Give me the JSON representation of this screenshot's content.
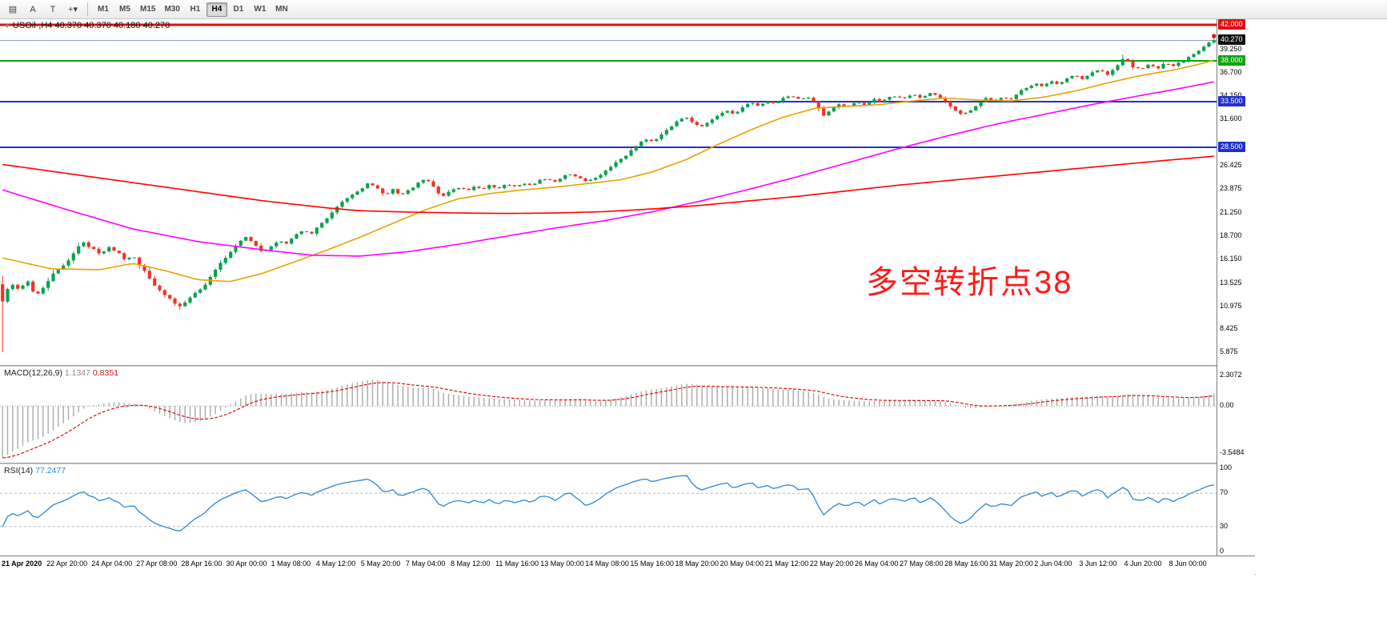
{
  "toolbar": {
    "tools": [
      {
        "name": "charts-list-icon",
        "glyph": "▤"
      },
      {
        "name": "annotate-a-button",
        "glyph": "A"
      },
      {
        "name": "text-label-button",
        "glyph": "T"
      },
      {
        "name": "drawing-tools-button",
        "glyph": "+▾"
      }
    ],
    "timeframes": [
      "M1",
      "M5",
      "M15",
      "M30",
      "H1",
      "H4",
      "D1",
      "W1",
      "MN"
    ],
    "active_timeframe": "H4"
  },
  "chart": {
    "symbol_label": "USOil-,H4 40.370 40.370 40.180 40.270",
    "annotation": "多空转折点38",
    "current_price": {
      "label": "40.270",
      "value": 40.27
    },
    "hlines": [
      {
        "label": "42.000",
        "value": 42.0,
        "color": "#dd1111",
        "width": 3
      },
      {
        "label": "38.000",
        "value": 38.0,
        "color": "#0fa30f",
        "width": 2
      },
      {
        "label": "33.500",
        "value": 33.5,
        "color": "#2330cc",
        "width": 2
      },
      {
        "label": "28.500",
        "value": 28.5,
        "color": "#2330cc",
        "width": 2
      }
    ],
    "price_ticks": [
      {
        "label": "39.250",
        "value": 39.25
      },
      {
        "label": "36.700",
        "value": 36.7
      },
      {
        "label": "34.150",
        "value": 34.15
      },
      {
        "label": "31.600",
        "value": 31.6
      },
      {
        "label": "26.425",
        "value": 26.425
      },
      {
        "label": "23.875",
        "value": 23.875
      },
      {
        "label": "21.250",
        "value": 21.25
      },
      {
        "label": "18.700",
        "value": 18.7
      },
      {
        "label": "16.150",
        "value": 16.15
      },
      {
        "label": "13.525",
        "value": 13.525
      },
      {
        "label": "10.975",
        "value": 10.975
      },
      {
        "label": "8.425",
        "value": 8.425
      },
      {
        "label": "5.875",
        "value": 5.875
      }
    ],
    "macd": {
      "name": "MACD(12,26,9)",
      "value": "1.1347",
      "signal": "0.8351",
      "axis": [
        {
          "label": "2.3072",
          "value": 2.3072
        },
        {
          "label": "0.00",
          "value": 0
        },
        {
          "label": "-3.5484",
          "value": -3.5484
        }
      ]
    },
    "rsi": {
      "name": "RSI(14)",
      "value": "77.2477",
      "axis": [
        {
          "label": "100",
          "value": 100
        },
        {
          "label": "70",
          "value": 70
        },
        {
          "label": "30",
          "value": 30
        },
        {
          "label": "0",
          "value": 0
        }
      ],
      "levels": [
        70,
        30
      ]
    },
    "time_labels": [
      "21 Apr 2020",
      "22 Apr 20:00",
      "24 Apr 04:00",
      "27 Apr 08:00",
      "28 Apr 16:00",
      "30 Apr 00:00",
      "1 May 08:00",
      "4 May 12:00",
      "5 May 20:00",
      "7 May 04:00",
      "8 May 12:00",
      "11 May 16:00",
      "13 May 00:00",
      "14 May 08:00",
      "15 May 16:00",
      "18 May 20:00",
      "20 May 04:00",
      "21 May 12:00",
      "22 May 20:00",
      "26 May 04:00",
      "27 May 08:00",
      "28 May 16:00",
      "31 May 20:00",
      "2 Jun 04:00",
      "3 Jun 12:00",
      "4 Jun 20:00",
      "8 Jun 00:00"
    ]
  },
  "chart_data": {
    "type": "candlestick+indicators",
    "symbol": "USOil",
    "timeframe": "H4",
    "ohlc_last": {
      "open": 40.37,
      "high": 40.37,
      "low": 40.18,
      "close": 40.27
    },
    "price_range": [
      4.5,
      42.6
    ],
    "render_bars": 240,
    "closes": [
      11.5,
      13.6,
      12.9,
      13.8,
      12.1,
      13.1,
      14.3,
      15.1,
      16.0,
      17.2,
      18.0,
      17.3,
      16.8,
      17.5,
      17.0,
      16.2,
      16.6,
      15.3,
      14.2,
      13.0,
      12.2,
      11.4,
      11.0,
      11.9,
      12.6,
      13.5,
      14.8,
      15.9,
      17.0,
      18.0,
      18.6,
      17.9,
      16.9,
      17.5,
      18.3,
      17.9,
      18.8,
      19.4,
      19.0,
      19.9,
      20.8,
      21.9,
      22.6,
      23.3,
      23.9,
      24.5,
      24.1,
      23.3,
      23.8,
      23.2,
      23.9,
      24.4,
      25.1,
      24.2,
      23.1,
      23.7,
      24.1,
      23.7,
      24.2,
      23.9,
      24.3,
      24.0,
      24.5,
      24.1,
      24.6,
      24.3,
      24.8,
      25.1,
      24.7,
      25.3,
      25.6,
      25.1,
      24.7,
      25.2,
      25.8,
      26.5,
      27.2,
      27.9,
      28.7,
      29.4,
      29.0,
      29.9,
      30.6,
      31.3,
      31.9,
      31.1,
      30.7,
      31.4,
      32.0,
      32.5,
      32.1,
      32.9,
      33.4,
      33.0,
      33.6,
      33.2,
      33.9,
      34.2,
      33.7,
      34.0,
      33.4,
      31.9,
      32.7,
      33.3,
      32.9,
      33.5,
      33.1,
      33.8,
      33.4,
      34.0,
      34.2,
      33.9,
      34.3,
      34.0,
      34.5,
      34.1,
      33.6,
      32.7,
      32.0,
      32.6,
      33.3,
      33.9,
      33.5,
      34.1,
      33.7,
      34.5,
      35.1,
      35.5,
      35.1,
      35.8,
      35.4,
      36.1,
      36.4,
      36.0,
      36.7,
      37.0,
      36.5,
      37.3,
      38.4,
      37.4,
      37.0,
      37.6,
      37.2,
      37.7,
      37.4,
      38.0,
      38.4,
      39.0,
      39.7,
      40.27
    ],
    "overrides": {
      "0": {
        "open": 13.4,
        "low": 5.9
      },
      "22": {
        "low": 10.6
      },
      "138": {
        "high": 38.7
      },
      "149": {
        "high": 40.5
      }
    },
    "colors": {
      "up": "#0ca04f",
      "down": "#ee3426"
    },
    "moving_averages": [
      {
        "name": "ma-fast-line",
        "color": "#e8a200",
        "anchors": [
          [
            0,
            16.3
          ],
          [
            6,
            15.1
          ],
          [
            12,
            15.0
          ],
          [
            16,
            15.7
          ],
          [
            20,
            14.9
          ],
          [
            24,
            13.9
          ],
          [
            28,
            13.7
          ],
          [
            32,
            14.6
          ],
          [
            36,
            15.9
          ],
          [
            40,
            17.2
          ],
          [
            44,
            18.6
          ],
          [
            48,
            20.1
          ],
          [
            52,
            21.6
          ],
          [
            56,
            22.8
          ],
          [
            60,
            23.4
          ],
          [
            64,
            23.8
          ],
          [
            68,
            24.1
          ],
          [
            72,
            24.5
          ],
          [
            76,
            24.9
          ],
          [
            80,
            25.8
          ],
          [
            84,
            27.1
          ],
          [
            88,
            28.8
          ],
          [
            92,
            30.4
          ],
          [
            96,
            31.8
          ],
          [
            100,
            32.8
          ],
          [
            104,
            33.0
          ],
          [
            108,
            33.2
          ],
          [
            112,
            33.6
          ],
          [
            116,
            33.9
          ],
          [
            120,
            33.7
          ],
          [
            124,
            33.6
          ],
          [
            128,
            34.0
          ],
          [
            132,
            34.7
          ],
          [
            136,
            35.6
          ],
          [
            140,
            36.4
          ],
          [
            144,
            37.0
          ],
          [
            147,
            37.6
          ],
          [
            149,
            38.1
          ]
        ]
      },
      {
        "name": "ma-medium-line",
        "color": "#ff00ff",
        "anchors": [
          [
            0,
            23.8
          ],
          [
            8,
            21.6
          ],
          [
            16,
            19.5
          ],
          [
            24,
            18.1
          ],
          [
            32,
            17.2
          ],
          [
            38,
            16.6
          ],
          [
            44,
            16.5
          ],
          [
            50,
            17.0
          ],
          [
            56,
            17.8
          ],
          [
            62,
            18.7
          ],
          [
            68,
            19.6
          ],
          [
            74,
            20.4
          ],
          [
            80,
            21.4
          ],
          [
            86,
            22.6
          ],
          [
            92,
            23.9
          ],
          [
            98,
            25.3
          ],
          [
            104,
            26.8
          ],
          [
            110,
            28.3
          ],
          [
            116,
            29.7
          ],
          [
            122,
            31.0
          ],
          [
            128,
            32.1
          ],
          [
            134,
            33.2
          ],
          [
            140,
            34.2
          ],
          [
            145,
            35.0
          ],
          [
            149,
            35.7
          ]
        ]
      },
      {
        "name": "ma-slow-line",
        "color": "#ff0000",
        "anchors": [
          [
            0,
            26.6
          ],
          [
            8,
            25.6
          ],
          [
            16,
            24.6
          ],
          [
            24,
            23.6
          ],
          [
            32,
            22.6
          ],
          [
            40,
            21.8
          ],
          [
            44,
            21.5
          ],
          [
            50,
            21.35
          ],
          [
            56,
            21.25
          ],
          [
            62,
            21.2
          ],
          [
            68,
            21.25
          ],
          [
            74,
            21.4
          ],
          [
            80,
            21.7
          ],
          [
            86,
            22.1
          ],
          [
            92,
            22.6
          ],
          [
            98,
            23.1
          ],
          [
            104,
            23.7
          ],
          [
            110,
            24.3
          ],
          [
            116,
            24.8
          ],
          [
            122,
            25.3
          ],
          [
            128,
            25.8
          ],
          [
            134,
            26.3
          ],
          [
            140,
            26.8
          ],
          [
            145,
            27.2
          ],
          [
            149,
            27.5
          ]
        ]
      }
    ],
    "macd_seed": {
      "e12_offset": 2.5,
      "e26_offset": 6.5
    },
    "macd_range": [
      -3.9,
      2.6
    ],
    "hline_values": [
      42.0,
      38.0,
      33.5,
      28.5
    ]
  }
}
